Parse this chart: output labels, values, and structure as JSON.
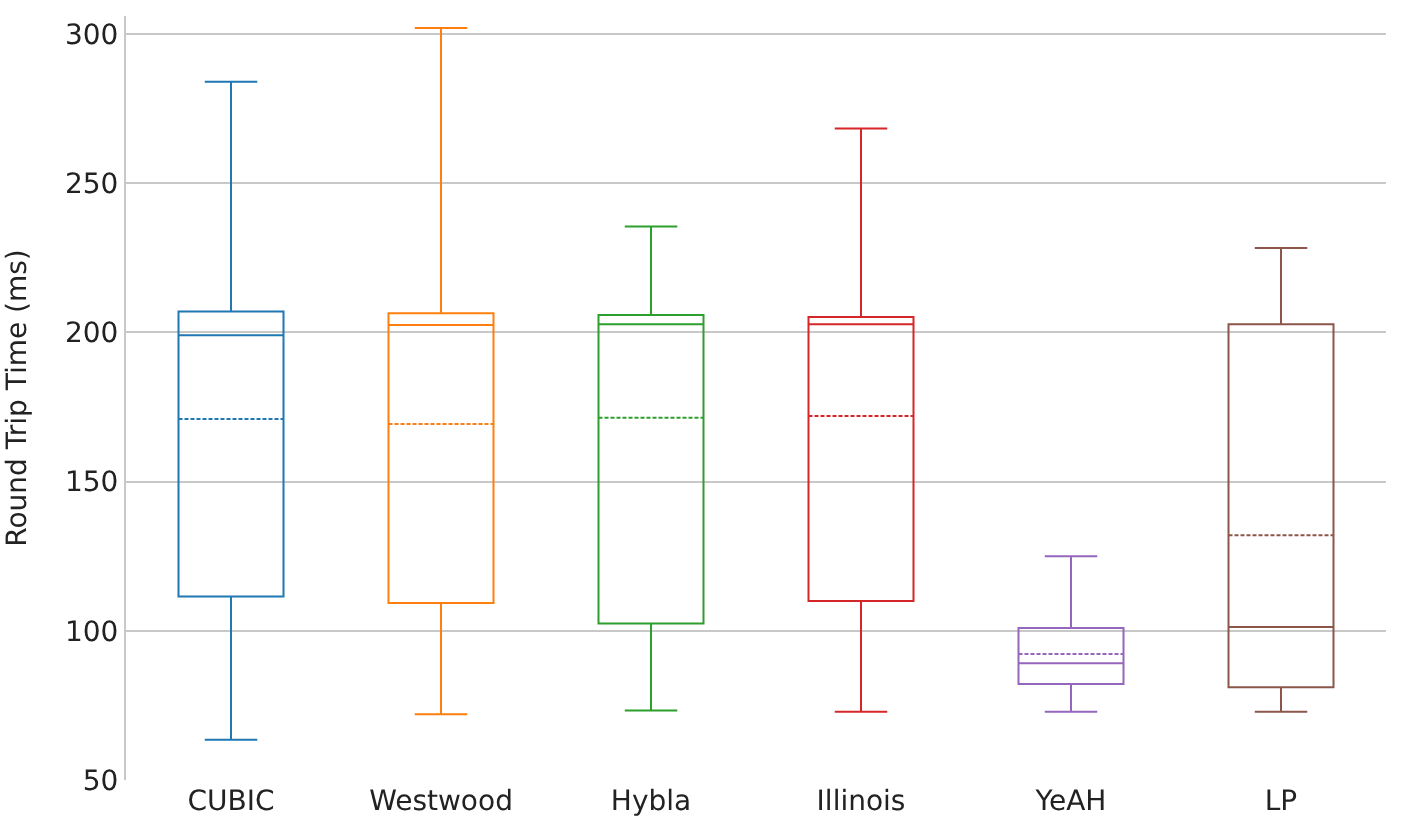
{
  "chart_data": {
    "type": "box",
    "ylabel": "Round Trip Time (ms)",
    "categories": [
      "CUBIC",
      "Westwood",
      "Hybla",
      "Illinois",
      "YeAH",
      "LP"
    ],
    "colors": [
      "#1f77b4",
      "#ff7f0e",
      "#2ca02c",
      "#d62728",
      "#9467bd",
      "#8c564b"
    ],
    "boxes": [
      {
        "low": 63.5,
        "q1": 111.5,
        "median": 199,
        "q3": 207,
        "high": 284,
        "mean": 171
      },
      {
        "low": 72,
        "q1": 109.3,
        "median": 202.5,
        "q3": 206.4,
        "high": 302,
        "mean": 169.3
      },
      {
        "low": 73.3,
        "q1": 102.4,
        "median": 202.7,
        "q3": 205.8,
        "high": 235.5,
        "mean": 171.4
      },
      {
        "low": 72.9,
        "q1": 110,
        "median": 202.7,
        "q3": 205.1,
        "high": 268.3,
        "mean": 172
      },
      {
        "low": 72.9,
        "q1": 82.2,
        "median": 89.1,
        "q3": 100.9,
        "high": 125,
        "mean": 92.2
      },
      {
        "low": 72.9,
        "q1": 81.1,
        "median": 101.3,
        "q3": 202.7,
        "high": 228.3,
        "mean": 132
      }
    ],
    "ylim": [
      50,
      306
    ],
    "yticks": [
      50,
      100,
      150,
      200,
      250,
      300
    ],
    "grid": "y",
    "legend": false
  }
}
